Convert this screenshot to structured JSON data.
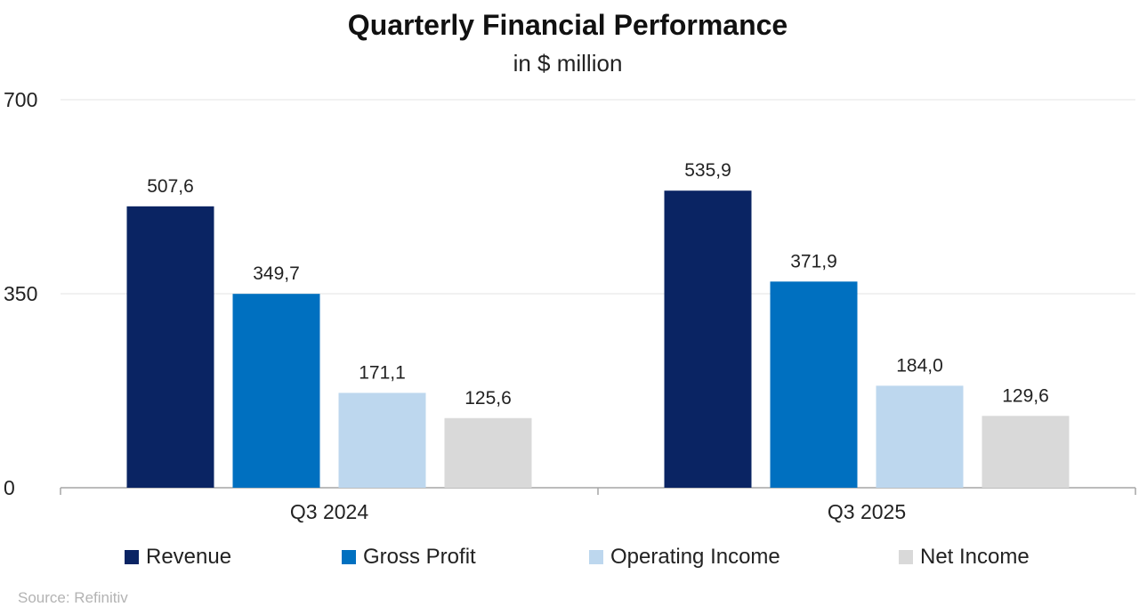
{
  "chart_data": {
    "type": "bar",
    "title": "Quarterly Financial Performance",
    "subtitle": "in $ million",
    "categories": [
      "Q3 2024",
      "Q3 2025"
    ],
    "series": [
      {
        "name": "Revenue",
        "color": "#0a2463",
        "values": [
          507.6,
          535.9
        ],
        "labels": [
          "507,6",
          "535,9"
        ]
      },
      {
        "name": "Gross Profit",
        "color": "#0070c0",
        "values": [
          349.7,
          371.9
        ],
        "labels": [
          "349,7",
          "371,9"
        ]
      },
      {
        "name": "Operating Income",
        "color": "#bdd7ee",
        "values": [
          171.1,
          184.0
        ],
        "labels": [
          "171,1",
          "184,0"
        ]
      },
      {
        "name": "Net Income",
        "color": "#d9d9d9",
        "values": [
          125.6,
          129.6
        ],
        "labels": [
          "125,6",
          "129,6"
        ]
      }
    ],
    "ylim": [
      0,
      700
    ],
    "yticks": [
      0,
      350,
      700
    ],
    "ytick_labels": [
      "0",
      "350",
      "700"
    ],
    "grid": true,
    "legend": "bottom",
    "xlabel": "",
    "ylabel": ""
  },
  "source": "Source: Refinitiv"
}
